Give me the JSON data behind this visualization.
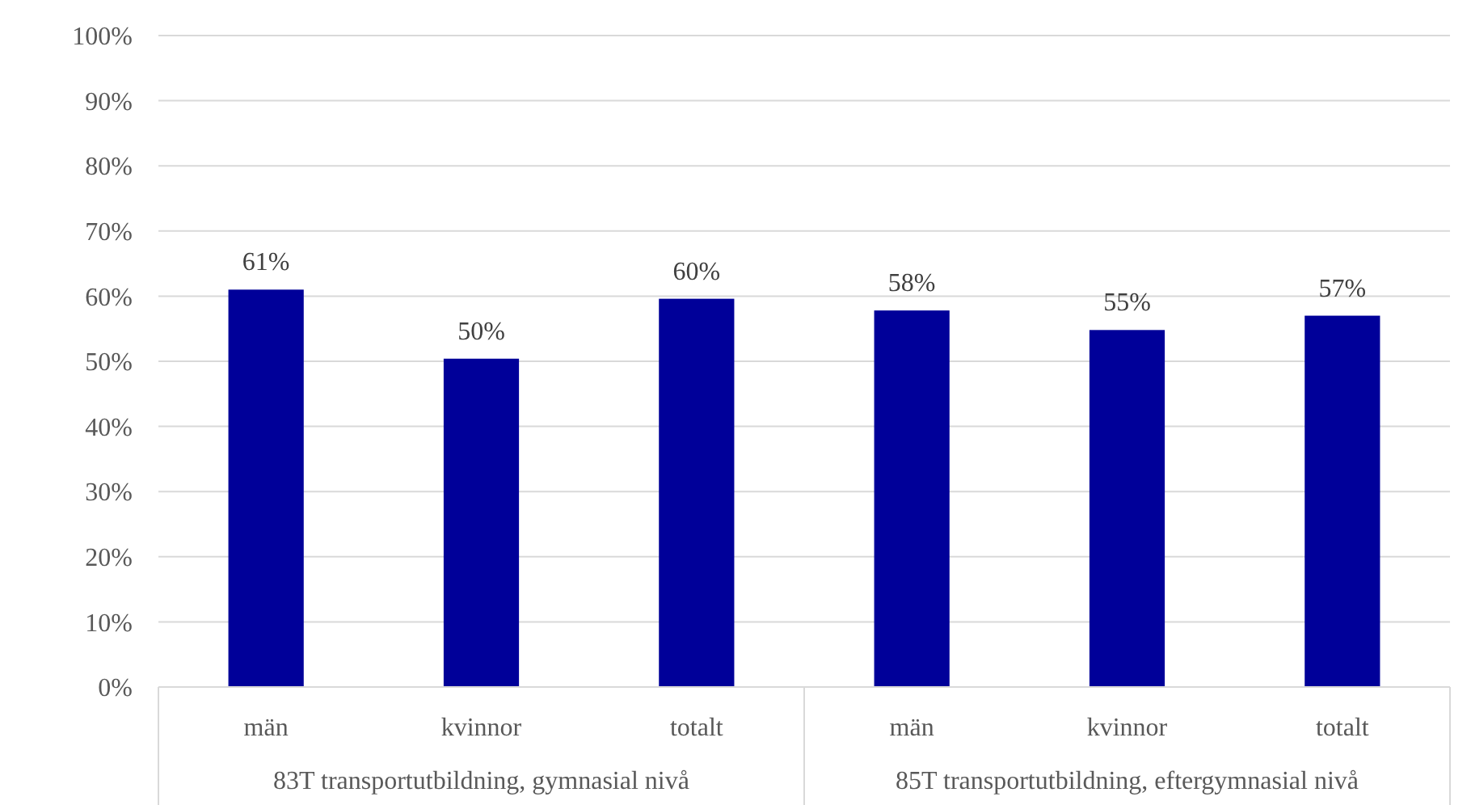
{
  "chart_data": {
    "type": "bar",
    "categories": [
      "män",
      "kvinnor",
      "totalt",
      "män",
      "kvinnor",
      "totalt"
    ],
    "values": [
      61,
      50.4,
      59.6,
      57.8,
      54.8,
      57
    ],
    "value_labels": [
      "61%",
      "50%",
      "60%",
      "58%",
      "55%",
      "57%"
    ],
    "color": "#000099",
    "ylim": [
      0,
      100
    ],
    "yticks": [
      {
        "value": 0,
        "label": "0%"
      },
      {
        "value": 10,
        "label": "10%"
      },
      {
        "value": 20,
        "label": "20%"
      },
      {
        "value": 30,
        "label": "30%"
      },
      {
        "value": 40,
        "label": "40%"
      },
      {
        "value": 50,
        "label": "50%"
      },
      {
        "value": 60,
        "label": "60%"
      },
      {
        "value": 70,
        "label": "70%"
      },
      {
        "value": 80,
        "label": "80%"
      },
      {
        "value": 90,
        "label": "90%"
      },
      {
        "value": 100,
        "label": "100%"
      }
    ],
    "grid": "y",
    "annotations": [
      "83T transportutbildning, gymnasial nivå",
      "85T transportutbildning, eftergymnasial nivå"
    ]
  }
}
